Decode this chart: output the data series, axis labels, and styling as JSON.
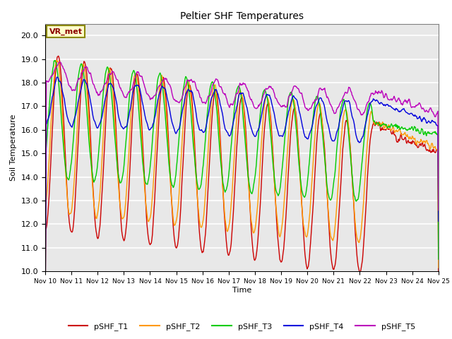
{
  "title": "Peltier SHF Temperatures",
  "xlabel": "Time",
  "ylabel": "Soil Temperature",
  "ylim": [
    10.0,
    20.5
  ],
  "yticks": [
    10.0,
    11.0,
    12.0,
    13.0,
    14.0,
    15.0,
    16.0,
    17.0,
    18.0,
    19.0,
    20.0
  ],
  "xlim_days": [
    0,
    15
  ],
  "xtick_labels": [
    "Nov 10",
    "Nov 11",
    "Nov 12",
    "Nov 13",
    "Nov 14",
    "Nov 15",
    "Nov 16",
    "Nov 17",
    "Nov 18",
    "Nov 19",
    "Nov 20",
    "Nov 21",
    "Nov 22",
    "Nov 23",
    "Nov 24",
    "Nov 25"
  ],
  "series_colors": {
    "pSHF_T1": "#cc0000",
    "pSHF_T2": "#ff9900",
    "pSHF_T3": "#00cc00",
    "pSHF_T4": "#0000dd",
    "pSHF_T5": "#bb00bb"
  },
  "linewidth": 1.0,
  "annotation_text": "VR_met",
  "plot_bg_color": "#e8e8e8",
  "grid_color": "white",
  "fig_bg_color": "#ffffff",
  "legend_labels": [
    "pSHF_T1",
    "pSHF_T2",
    "pSHF_T3",
    "pSHF_T4",
    "pSHF_T5"
  ]
}
